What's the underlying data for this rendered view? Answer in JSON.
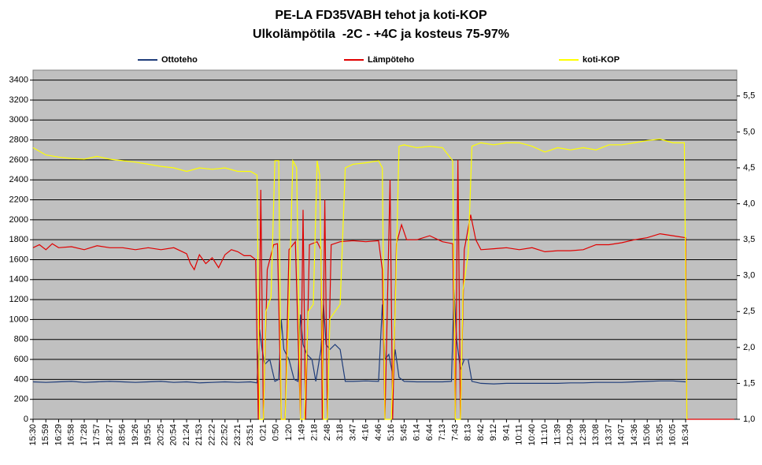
{
  "chart_data": {
    "type": "line",
    "title": "PE-LA FD35VABH tehot ja koti-KOP",
    "subtitle": "Ulkolämpötila  -2C - +4C ja kosteus 75-97%",
    "background": "#c0c0c0",
    "grid": true,
    "xlim": [
      0,
      55
    ],
    "xticks": [
      {
        "value": 0,
        "label": "15:30"
      },
      {
        "value": 1,
        "label": "15:59"
      },
      {
        "value": 2,
        "label": "16:29"
      },
      {
        "value": 3,
        "label": "16:58"
      },
      {
        "value": 4,
        "label": "17:28"
      },
      {
        "value": 5,
        "label": "17:57"
      },
      {
        "value": 6,
        "label": "18:27"
      },
      {
        "value": 7,
        "label": "18:56"
      },
      {
        "value": 8,
        "label": "19:26"
      },
      {
        "value": 9,
        "label": "19:55"
      },
      {
        "value": 10,
        "label": "20:25"
      },
      {
        "value": 11,
        "label": "20:54"
      },
      {
        "value": 12,
        "label": "21:24"
      },
      {
        "value": 13,
        "label": "21:53"
      },
      {
        "value": 14,
        "label": "22:22"
      },
      {
        "value": 15,
        "label": "22:52"
      },
      {
        "value": 16,
        "label": "23:21"
      },
      {
        "value": 17,
        "label": "23:51"
      },
      {
        "value": 18,
        "label": "0:21"
      },
      {
        "value": 19,
        "label": "0:50"
      },
      {
        "value": 20,
        "label": "1:20"
      },
      {
        "value": 21,
        "label": "1:49"
      },
      {
        "value": 22,
        "label": "2:18"
      },
      {
        "value": 23,
        "label": "2:48"
      },
      {
        "value": 24,
        "label": "3:18"
      },
      {
        "value": 25,
        "label": "3:47"
      },
      {
        "value": 26,
        "label": "4:16"
      },
      {
        "value": 27,
        "label": "4:46"
      },
      {
        "value": 28,
        "label": "5:16"
      },
      {
        "value": 29,
        "label": "5:45"
      },
      {
        "value": 30,
        "label": "6:14"
      },
      {
        "value": 31,
        "label": "6:44"
      },
      {
        "value": 32,
        "label": "7:13"
      },
      {
        "value": 33,
        "label": "7:43"
      },
      {
        "value": 34,
        "label": "8:13"
      },
      {
        "value": 35,
        "label": "8:42"
      },
      {
        "value": 36,
        "label": "9:12"
      },
      {
        "value": 37,
        "label": "9:41"
      },
      {
        "value": 38,
        "label": "10:11"
      },
      {
        "value": 39,
        "label": "10:40"
      },
      {
        "value": 40,
        "label": "11:10"
      },
      {
        "value": 41,
        "label": "11:39"
      },
      {
        "value": 42,
        "label": "12:09"
      },
      {
        "value": 43,
        "label": "12:38"
      },
      {
        "value": 44,
        "label": "13:08"
      },
      {
        "value": 45,
        "label": "13:37"
      },
      {
        "value": 46,
        "label": "14:07"
      },
      {
        "value": 47,
        "label": "14:36"
      },
      {
        "value": 48,
        "label": "15:06"
      },
      {
        "value": 49,
        "label": "15:35"
      },
      {
        "value": 50,
        "label": "16:05"
      },
      {
        "value": 51,
        "label": "16:34"
      }
    ],
    "ylim": [
      0,
      3500
    ],
    "yticks": [
      0,
      200,
      400,
      600,
      800,
      1000,
      1200,
      1400,
      1600,
      1800,
      2000,
      2200,
      2400,
      2600,
      2800,
      3000,
      3200,
      3400
    ],
    "y2lim": [
      1,
      5.86
    ],
    "y2ticks": [
      {
        "value": 1,
        "label": "1,0"
      },
      {
        "value": 1.5,
        "label": "1,5"
      },
      {
        "value": 2,
        "label": "2,0"
      },
      {
        "value": 2.5,
        "label": "2,5"
      },
      {
        "value": 3,
        "label": "3,0"
      },
      {
        "value": 3.5,
        "label": "3,5"
      },
      {
        "value": 4,
        "label": "4,0"
      },
      {
        "value": 4.5,
        "label": "4,5"
      },
      {
        "value": 5,
        "label": "5,0"
      },
      {
        "value": 5.5,
        "label": "5,5"
      }
    ],
    "series": [
      {
        "name": "Ottoteho",
        "color": "#1f3d7a",
        "x": [
          0,
          1,
          2,
          3,
          4,
          5,
          6,
          7,
          8,
          9,
          10,
          11,
          12,
          13,
          14,
          15,
          16,
          17,
          17.5,
          17.7,
          17.9,
          18.1,
          18.5,
          18.9,
          19.2,
          19.4,
          19.6,
          20,
          20.4,
          20.7,
          20.9,
          21.1,
          21.4,
          21.8,
          22.1,
          22.5,
          22.7,
          22.9,
          23.2,
          23.6,
          24,
          24.4,
          25,
          26,
          27,
          27.3,
          27.5,
          27.8,
          28.1,
          28.3,
          28.6,
          29,
          30,
          31,
          32,
          32.7,
          32.9,
          33.1,
          33.4,
          33.7,
          34,
          34.3,
          35,
          36,
          37,
          38,
          39,
          40,
          41,
          42,
          43,
          44,
          45,
          46,
          47,
          48,
          49,
          50,
          51
        ],
        "values": [
          375,
          370,
          375,
          380,
          370,
          375,
          380,
          375,
          370,
          375,
          380,
          370,
          375,
          365,
          370,
          375,
          370,
          375,
          365,
          900,
          700,
          550,
          600,
          380,
          400,
          1000,
          700,
          600,
          400,
          380,
          1050,
          750,
          650,
          600,
          380,
          700,
          1150,
          750,
          700,
          750,
          700,
          380,
          380,
          385,
          380,
          1150,
          600,
          650,
          450,
          700,
          420,
          380,
          375,
          375,
          375,
          380,
          1300,
          800,
          500,
          600,
          600,
          380,
          360,
          355,
          360,
          360,
          360,
          360,
          360,
          365,
          365,
          370,
          370,
          370,
          375,
          380,
          385,
          385,
          375
        ]
      },
      {
        "name": "Lämpöteho",
        "color": "#e00000",
        "x": [
          0,
          0.5,
          1,
          1.5,
          2,
          3,
          4,
          5,
          6,
          7,
          8,
          9,
          10,
          11,
          12,
          12.3,
          12.6,
          13,
          13.5,
          14,
          14.5,
          15,
          15.5,
          16,
          16.5,
          17,
          17.4,
          17.6,
          17.8,
          18,
          18.3,
          18.8,
          19.1,
          19.4,
          19.7,
          20,
          20.5,
          20.9,
          21.1,
          21.3,
          21.6,
          22.2,
          22.5,
          22.6,
          22.8,
          23,
          23.3,
          24,
          25,
          26,
          27,
          27.3,
          27.5,
          27.9,
          28.1,
          28.4,
          28.8,
          29.2,
          30,
          31,
          32,
          32.8,
          33,
          33.2,
          33.4,
          33.7,
          34.2,
          34.6,
          35,
          36,
          37,
          38,
          39,
          40,
          41,
          42,
          43,
          44,
          45,
          46,
          47,
          48,
          49,
          50,
          51,
          51.1,
          54.8
        ],
        "values": [
          1720,
          1750,
          1700,
          1760,
          1720,
          1730,
          1700,
          1740,
          1720,
          1720,
          1700,
          1720,
          1700,
          1720,
          1660,
          1560,
          1500,
          1650,
          1560,
          1620,
          1520,
          1650,
          1700,
          1680,
          1640,
          1640,
          1600,
          0,
          2300,
          0,
          1500,
          1750,
          1760,
          0,
          0,
          1700,
          1780,
          0,
          2100,
          0,
          1750,
          1780,
          1700,
          0,
          2200,
          0,
          1750,
          1780,
          1790,
          1780,
          1790,
          1500,
          0,
          2400,
          0,
          1760,
          1950,
          1800,
          1800,
          1840,
          1780,
          1760,
          0,
          2600,
          0,
          1700,
          2050,
          1800,
          1700,
          1710,
          1720,
          1700,
          1720,
          1680,
          1690,
          1690,
          1700,
          1750,
          1750,
          1770,
          1800,
          1820,
          1860,
          1840,
          1820,
          0,
          0
        ]
      },
      {
        "name": "koti-KOP",
        "color": "#ffff00",
        "axis": "y2",
        "x": [
          0,
          1,
          2,
          3,
          4,
          5,
          6,
          7,
          8,
          9,
          10,
          11,
          12,
          13,
          14,
          15,
          16,
          17,
          17.5,
          17.7,
          18,
          18.2,
          18.6,
          18.9,
          19.2,
          19.4,
          19.7,
          20,
          20.3,
          20.6,
          20.9,
          21.2,
          21.5,
          21.9,
          22.2,
          22.4,
          22.7,
          23,
          23.2,
          23.6,
          24,
          24.4,
          25,
          26,
          27,
          27.3,
          27.5,
          28,
          28.3,
          28.6,
          29,
          30,
          31,
          32,
          32.8,
          33,
          33.4,
          33.6,
          34,
          34.3,
          35,
          36,
          37,
          38,
          39,
          40,
          41,
          42,
          43,
          44,
          45,
          46,
          47,
          48,
          49,
          50,
          50.9,
          51.1
        ],
        "values": [
          4.78,
          4.68,
          4.65,
          4.63,
          4.62,
          4.66,
          4.62,
          4.6,
          4.58,
          4.55,
          4.52,
          4.5,
          4.45,
          4.5,
          4.48,
          4.5,
          4.45,
          4.45,
          4.4,
          1,
          1,
          2.5,
          2.7,
          4.6,
          4.6,
          1,
          1,
          2.6,
          4.6,
          4.5,
          1,
          1,
          2.5,
          2.6,
          4.6,
          4.4,
          1,
          1,
          2.4,
          2.5,
          2.6,
          4.5,
          4.55,
          4.57,
          4.6,
          4.5,
          1,
          1,
          2.5,
          4.8,
          4.82,
          4.78,
          4.8,
          4.78,
          4.6,
          1,
          1,
          2.8,
          3.3,
          4.8,
          4.85,
          4.82,
          4.85,
          4.85,
          4.8,
          4.72,
          4.78,
          4.75,
          4.78,
          4.75,
          4.82,
          4.82,
          4.85,
          4.88,
          4.9,
          4.85,
          4.85,
          1
        ]
      }
    ]
  }
}
